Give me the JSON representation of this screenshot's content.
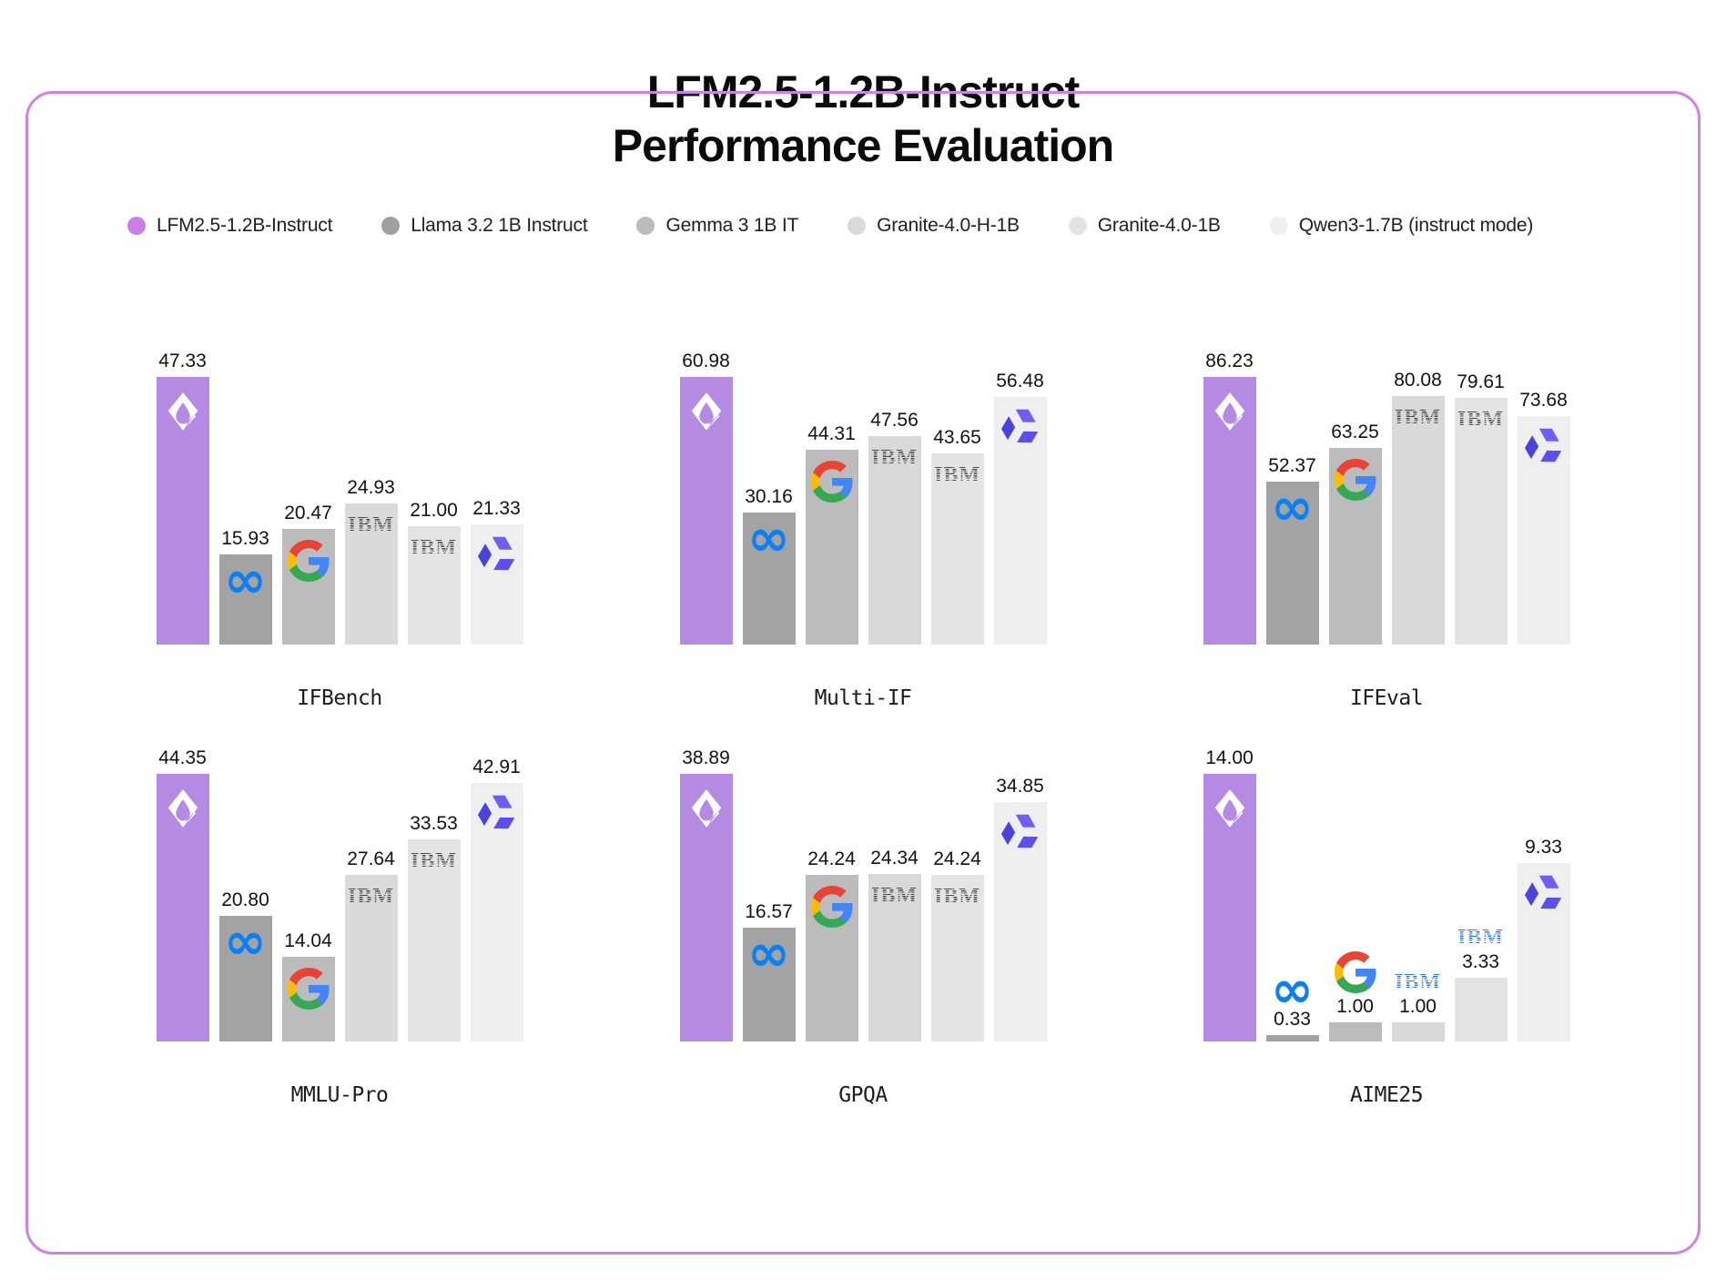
{
  "title": {
    "line1": "LFM2.5-1.2B-Instruct",
    "line2": "Performance Evaluation"
  },
  "legend": [
    {
      "label": "LFM2.5-1.2B-Instruct",
      "dot_color": "#c97ee8"
    },
    {
      "label": "Llama 3.2 1B Instruct",
      "dot_color": "#a0a0a0"
    },
    {
      "label": "Gemma 3 1B IT",
      "dot_color": "#bcbcbc"
    },
    {
      "label": "Granite-4.0-H-1B",
      "dot_color": "#d9d9d9"
    },
    {
      "label": "Granite-4.0-1B",
      "dot_color": "#e4e4e4"
    },
    {
      "label": "Qwen3-1.7B (instruct mode)",
      "dot_color": "#efefef"
    }
  ],
  "models": [
    {
      "name": "LFM2.5-1.2B-Instruct",
      "bar_color": "#b58ae3",
      "icon": "liquid-logo"
    },
    {
      "name": "Llama 3.2 1B Instruct",
      "bar_color": "#a3a3a3",
      "icon": "meta-logo"
    },
    {
      "name": "Gemma 3 1B IT",
      "bar_color": "#bcbcbc",
      "icon": "google-logo"
    },
    {
      "name": "Granite-4.0-H-1B",
      "bar_color": "#d9d9d9",
      "icon": "ibm-logo"
    },
    {
      "name": "Granite-4.0-1B",
      "bar_color": "#e4e4e4",
      "icon": "ibm-logo"
    },
    {
      "name": "Qwen3-1.7B (instruct mode)",
      "bar_color": "#efefef",
      "icon": "qwen-logo"
    }
  ],
  "colors": {
    "frame_border": "#cf80ea",
    "lfm_bar": "#b58ae3",
    "ibm_dark": "#4b4b4b",
    "ibm_blue": "#2d74db",
    "meta_blue": "#0b80f5",
    "qwen_purple": "#5b52e8",
    "google_blue": "#4285F4",
    "google_green": "#34A853",
    "google_yellow": "#FBBC05",
    "google_red": "#EA4335"
  },
  "layout": {
    "grid": "2x3",
    "legend_position": "top-left",
    "value_labels": "above-bars",
    "gridlines": "off",
    "axes": "hidden"
  },
  "chart_data": [
    {
      "type": "bar",
      "title": "IFBench",
      "categories": [
        "LFM2.5-1.2B-Instruct",
        "Llama 3.2 1B Instruct",
        "Gemma 3 1B IT",
        "Granite-4.0-H-1B",
        "Granite-4.0-1B",
        "Qwen3-1.7B (instruct mode)"
      ],
      "values": [
        47.33,
        15.93,
        20.47,
        24.93,
        21.0,
        21.33
      ]
    },
    {
      "type": "bar",
      "title": "Multi-IF",
      "categories": [
        "LFM2.5-1.2B-Instruct",
        "Llama 3.2 1B Instruct",
        "Gemma 3 1B IT",
        "Granite-4.0-H-1B",
        "Granite-4.0-1B",
        "Qwen3-1.7B (instruct mode)"
      ],
      "values": [
        60.98,
        30.16,
        44.31,
        47.56,
        43.65,
        56.48
      ]
    },
    {
      "type": "bar",
      "title": "IFEval",
      "categories": [
        "LFM2.5-1.2B-Instruct",
        "Llama 3.2 1B Instruct",
        "Gemma 3 1B IT",
        "Granite-4.0-H-1B",
        "Granite-4.0-1B",
        "Qwen3-1.7B (instruct mode)"
      ],
      "values": [
        86.23,
        52.37,
        63.25,
        80.08,
        79.61,
        73.68
      ]
    },
    {
      "type": "bar",
      "title": "MMLU-Pro",
      "categories": [
        "LFM2.5-1.2B-Instruct",
        "Llama 3.2 1B Instruct",
        "Gemma 3 1B IT",
        "Granite-4.0-H-1B",
        "Granite-4.0-1B",
        "Qwen3-1.7B (instruct mode)"
      ],
      "values": [
        44.35,
        20.8,
        14.04,
        27.64,
        33.53,
        42.91
      ]
    },
    {
      "type": "bar",
      "title": "GPQA",
      "categories": [
        "LFM2.5-1.2B-Instruct",
        "Llama 3.2 1B Instruct",
        "Gemma 3 1B IT",
        "Granite-4.0-H-1B",
        "Granite-4.0-1B",
        "Qwen3-1.7B (instruct mode)"
      ],
      "values": [
        38.89,
        16.57,
        24.24,
        24.34,
        24.24,
        34.85
      ]
    },
    {
      "type": "bar",
      "title": "AIME25",
      "categories": [
        "LFM2.5-1.2B-Instruct",
        "Llama 3.2 1B Instruct",
        "Gemma 3 1B IT",
        "Granite-4.0-H-1B",
        "Granite-4.0-1B",
        "Qwen3-1.7B (instruct mode)"
      ],
      "values": [
        14.0,
        0.33,
        1.0,
        1.0,
        3.33,
        9.33
      ]
    }
  ]
}
